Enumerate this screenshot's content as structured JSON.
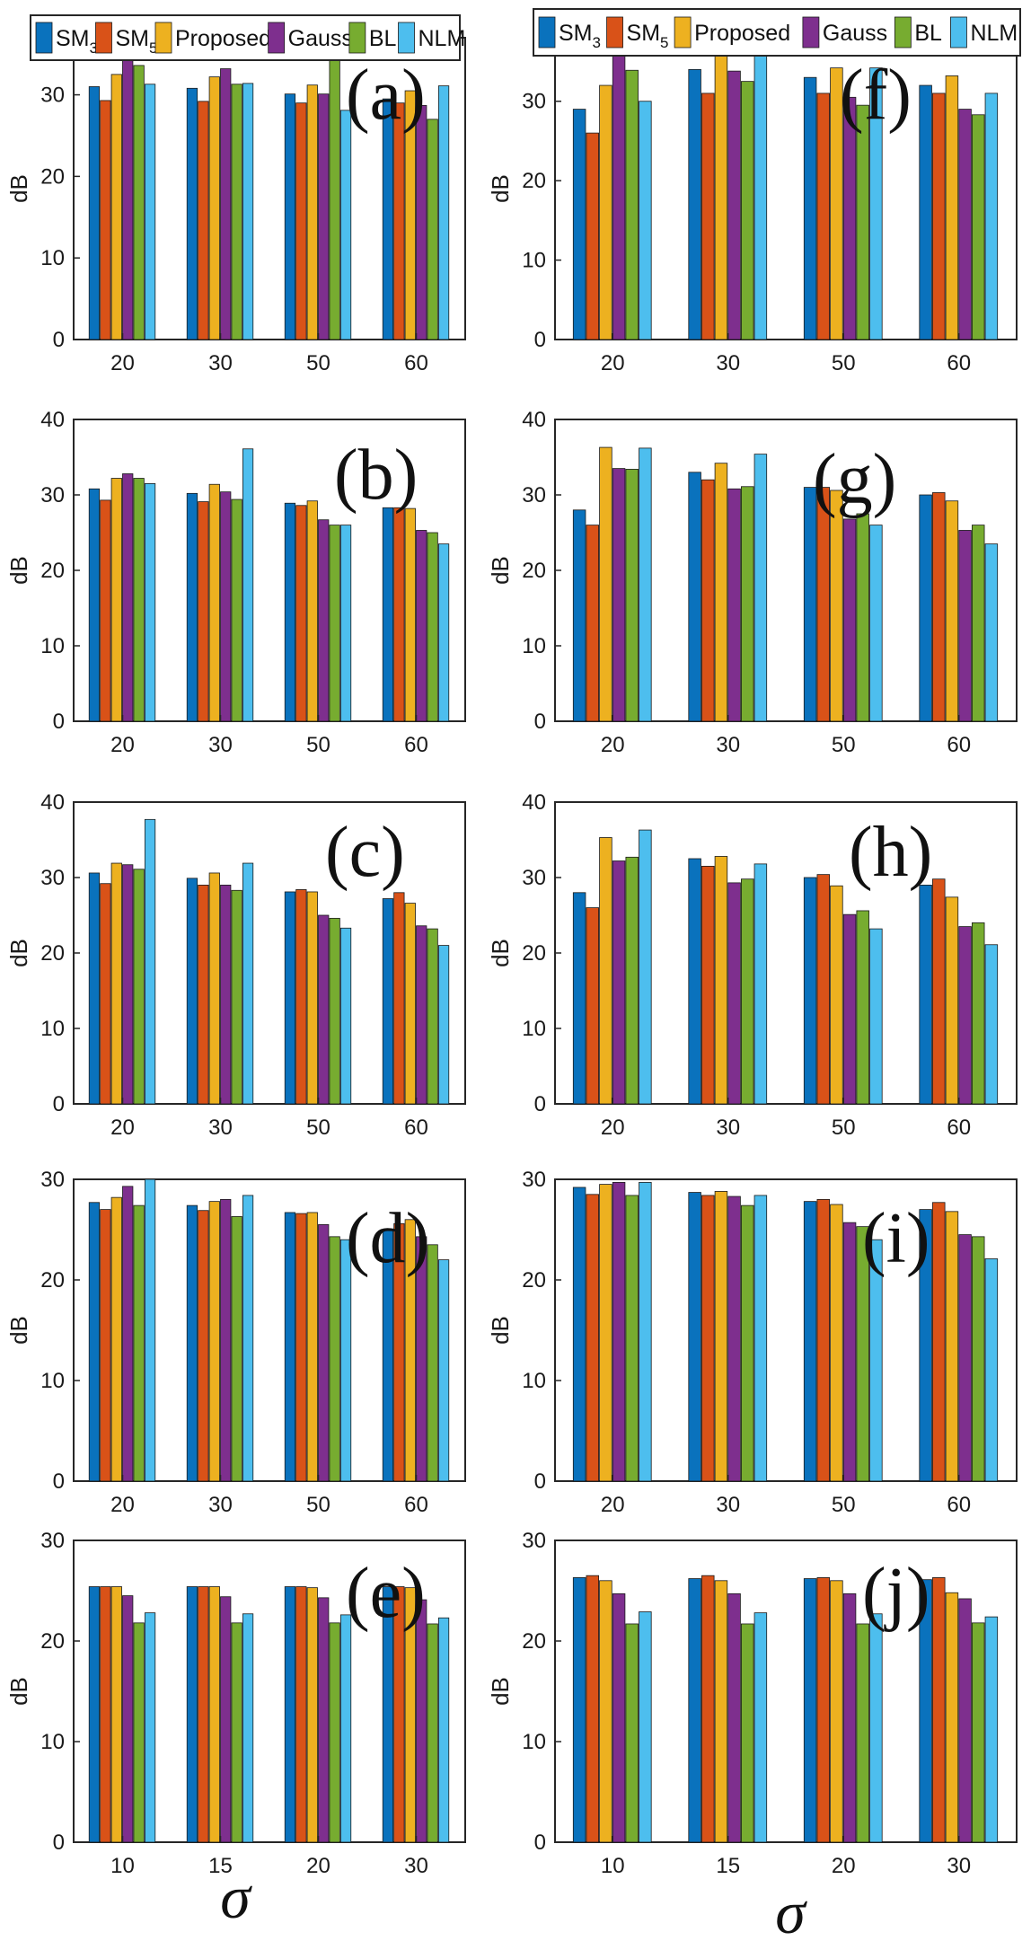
{
  "colors": {
    "SM3": "#0a72bd",
    "SM5": "#d95218",
    "Proposed": "#edb120",
    "Gauss": "#7e2f8e",
    "BL": "#77ac30",
    "NLM": "#4dbeee"
  },
  "legend_left": [
    {
      "key": "SM3",
      "label": "SM",
      "sub": "3"
    },
    {
      "key": "SM5",
      "label": "SM",
      "sub": "5"
    },
    {
      "key": "Proposed",
      "label": "Proposed",
      "sub": ""
    },
    {
      "key": "Gauss",
      "label": "Gauss",
      "sub": ""
    },
    {
      "key": "BL",
      "label": "BL",
      "sub": ""
    },
    {
      "key": "NLM",
      "label": "NLM",
      "sub": ""
    }
  ],
  "legend_right": [
    {
      "key": "SM3",
      "label": "SM",
      "sub": "3"
    },
    {
      "key": "SM5",
      "label": "SM",
      "sub": "5"
    },
    {
      "key": "Proposed",
      "label": "Proposed",
      "sub": ""
    },
    {
      "key": "Gauss",
      "label": "Gauss",
      "sub": ""
    },
    {
      "key": "BL",
      "label": "BL",
      "sub": ""
    },
    {
      "key": "NLM",
      "label": "NLM",
      "sub": ""
    }
  ],
  "xlabel_left": "σ",
  "xlabel_right": "σ",
  "chart_data": [
    {
      "panel": "(a)",
      "type": "bar",
      "ylabel": "dB",
      "categories": [
        "20",
        "30",
        "50",
        "60"
      ],
      "ylim": [
        0,
        37
      ],
      "yticks": [
        0,
        10,
        20,
        30
      ],
      "series": [
        {
          "name": "SM3",
          "values": [
            31,
            30.8,
            30.1,
            29.5
          ]
        },
        {
          "name": "SM5",
          "values": [
            29.3,
            29.2,
            29,
            29
          ]
        },
        {
          "name": "Proposed",
          "values": [
            32.5,
            32.2,
            31.2,
            30.5
          ]
        },
        {
          "name": "Gauss",
          "values": [
            35,
            33.2,
            30.1,
            28.7
          ]
        },
        {
          "name": "BL",
          "values": [
            33.6,
            31.3,
            34.6,
            27
          ]
        },
        {
          "name": "NLM",
          "values": [
            31.3,
            31.4,
            28.1,
            31.1
          ]
        }
      ]
    },
    {
      "panel": "(f)",
      "type": "bar",
      "ylabel": "dB",
      "categories": [
        "20",
        "30",
        "50",
        "60"
      ],
      "ylim": [
        0,
        38
      ],
      "yticks": [
        0,
        10,
        20,
        30
      ],
      "series": [
        {
          "name": "SM3",
          "values": [
            29,
            34,
            33,
            32
          ]
        },
        {
          "name": "SM5",
          "values": [
            26,
            31,
            31,
            31
          ]
        },
        {
          "name": "Proposed",
          "values": [
            32,
            36.5,
            34.2,
            33.2
          ]
        },
        {
          "name": "Gauss",
          "values": [
            36,
            33.8,
            30.5,
            29
          ]
        },
        {
          "name": "BL",
          "values": [
            33.9,
            32.5,
            29.5,
            28.3
          ]
        },
        {
          "name": "NLM",
          "values": [
            30,
            36,
            34.2,
            31
          ]
        }
      ]
    },
    {
      "panel": "(b)",
      "type": "bar",
      "ylabel": "dB",
      "categories": [
        "20",
        "30",
        "50",
        "60"
      ],
      "ylim": [
        0,
        40
      ],
      "yticks": [
        0,
        10,
        20,
        30,
        40
      ],
      "series": [
        {
          "name": "SM3",
          "values": [
            30.8,
            30.2,
            28.9,
            28.3
          ]
        },
        {
          "name": "SM5",
          "values": [
            29.3,
            29.1,
            28.6,
            28.3
          ]
        },
        {
          "name": "Proposed",
          "values": [
            32.2,
            31.4,
            29.2,
            28.2
          ]
        },
        {
          "name": "Gauss",
          "values": [
            32.8,
            30.4,
            26.7,
            25.3
          ]
        },
        {
          "name": "BL",
          "values": [
            32.2,
            29.4,
            26,
            25
          ]
        },
        {
          "name": "NLM",
          "values": [
            31.5,
            36.1,
            26,
            23.5
          ]
        }
      ]
    },
    {
      "panel": "(g)",
      "type": "bar",
      "ylabel": "dB",
      "categories": [
        "20",
        "30",
        "50",
        "60"
      ],
      "ylim": [
        0,
        40
      ],
      "yticks": [
        0,
        10,
        20,
        30,
        40
      ],
      "series": [
        {
          "name": "SM3",
          "values": [
            28,
            33,
            31,
            30
          ]
        },
        {
          "name": "SM5",
          "values": [
            26,
            32,
            31,
            30.3
          ]
        },
        {
          "name": "Proposed",
          "values": [
            36.3,
            34.2,
            30.6,
            29.2
          ]
        },
        {
          "name": "Gauss",
          "values": [
            33.5,
            30.8,
            26.8,
            25.3
          ]
        },
        {
          "name": "BL",
          "values": [
            33.4,
            31.1,
            27.5,
            26
          ]
        },
        {
          "name": "NLM",
          "values": [
            36.2,
            35.4,
            26,
            23.5
          ]
        }
      ]
    },
    {
      "panel": "(c)",
      "type": "bar",
      "ylabel": "dB",
      "categories": [
        "20",
        "30",
        "50",
        "60"
      ],
      "ylim": [
        0,
        40
      ],
      "yticks": [
        0,
        10,
        20,
        30,
        40
      ],
      "series": [
        {
          "name": "SM3",
          "values": [
            30.6,
            29.9,
            28.1,
            27.2
          ]
        },
        {
          "name": "SM5",
          "values": [
            29.2,
            29,
            28.4,
            28
          ]
        },
        {
          "name": "Proposed",
          "values": [
            31.9,
            30.6,
            28.1,
            26.6
          ]
        },
        {
          "name": "Gauss",
          "values": [
            31.7,
            29,
            25,
            23.6
          ]
        },
        {
          "name": "BL",
          "values": [
            31.1,
            28.3,
            24.6,
            23.2
          ]
        },
        {
          "name": "NLM",
          "values": [
            37.7,
            31.9,
            23.3,
            21
          ]
        }
      ]
    },
    {
      "panel": "(h)",
      "type": "bar",
      "ylabel": "dB",
      "categories": [
        "20",
        "30",
        "50",
        "60"
      ],
      "ylim": [
        0,
        40
      ],
      "yticks": [
        0,
        10,
        20,
        30,
        40
      ],
      "series": [
        {
          "name": "SM3",
          "values": [
            28,
            32.5,
            30,
            29
          ]
        },
        {
          "name": "SM5",
          "values": [
            26,
            31.5,
            30.4,
            29.8
          ]
        },
        {
          "name": "Proposed",
          "values": [
            35.3,
            32.8,
            28.9,
            27.4
          ]
        },
        {
          "name": "Gauss",
          "values": [
            32.2,
            29.3,
            25.1,
            23.5
          ]
        },
        {
          "name": "BL",
          "values": [
            32.7,
            29.8,
            25.6,
            24
          ]
        },
        {
          "name": "NLM",
          "values": [
            36.3,
            31.8,
            23.2,
            21.1
          ]
        }
      ]
    },
    {
      "panel": "(d)",
      "type": "bar",
      "ylabel": "dB",
      "categories": [
        "20",
        "30",
        "50",
        "60"
      ],
      "ylim": [
        0,
        30
      ],
      "yticks": [
        0,
        10,
        20,
        30
      ],
      "series": [
        {
          "name": "SM3",
          "values": [
            27.7,
            27.4,
            26.7,
            25
          ]
        },
        {
          "name": "SM5",
          "values": [
            27,
            26.9,
            26.6,
            25.6
          ]
        },
        {
          "name": "Proposed",
          "values": [
            28.2,
            27.8,
            26.7,
            26
          ]
        },
        {
          "name": "Gauss",
          "values": [
            29.3,
            28,
            25.5,
            24.3
          ]
        },
        {
          "name": "BL",
          "values": [
            27.4,
            26.3,
            24.3,
            23.5
          ]
        },
        {
          "name": "NLM",
          "values": [
            30,
            28.4,
            24,
            22
          ]
        }
      ]
    },
    {
      "panel": "(i)",
      "type": "bar",
      "ylabel": "dB",
      "categories": [
        "20",
        "30",
        "50",
        "60"
      ],
      "ylim": [
        0,
        30
      ],
      "yticks": [
        0,
        10,
        20,
        30
      ],
      "series": [
        {
          "name": "SM3",
          "values": [
            29.2,
            28.7,
            27.8,
            27
          ]
        },
        {
          "name": "SM5",
          "values": [
            28.5,
            28.4,
            28,
            27.7
          ]
        },
        {
          "name": "Proposed",
          "values": [
            29.5,
            28.8,
            27.5,
            26.8
          ]
        },
        {
          "name": "Gauss",
          "values": [
            29.7,
            28.3,
            25.7,
            24.5
          ]
        },
        {
          "name": "BL",
          "values": [
            28.4,
            27.4,
            25.3,
            24.3
          ]
        },
        {
          "name": "NLM",
          "values": [
            29.7,
            28.4,
            24,
            22.1
          ]
        }
      ]
    },
    {
      "panel": "(e)",
      "type": "bar",
      "ylabel": "dB",
      "categories": [
        "10",
        "15",
        "20",
        "30"
      ],
      "ylim": [
        0,
        30
      ],
      "yticks": [
        0,
        10,
        20,
        30
      ],
      "series": [
        {
          "name": "SM3",
          "values": [
            25.4,
            25.4,
            25.4,
            25.4
          ]
        },
        {
          "name": "SM5",
          "values": [
            25.4,
            25.4,
            25.4,
            25.4
          ]
        },
        {
          "name": "Proposed",
          "values": [
            25.4,
            25.4,
            25.3,
            25.3
          ]
        },
        {
          "name": "Gauss",
          "values": [
            24.5,
            24.4,
            24.3,
            24.1
          ]
        },
        {
          "name": "BL",
          "values": [
            21.8,
            21.8,
            21.8,
            21.7
          ]
        },
        {
          "name": "NLM",
          "values": [
            22.8,
            22.7,
            22.6,
            22.3
          ]
        }
      ]
    },
    {
      "panel": "(j)",
      "type": "bar",
      "ylabel": "dB",
      "categories": [
        "10",
        "15",
        "20",
        "30"
      ],
      "ylim": [
        0,
        30
      ],
      "yticks": [
        0,
        10,
        20,
        30
      ],
      "series": [
        {
          "name": "SM3",
          "values": [
            26.3,
            26.2,
            26.2,
            26.1
          ]
        },
        {
          "name": "SM5",
          "values": [
            26.5,
            26.5,
            26.3,
            26.3
          ]
        },
        {
          "name": "Proposed",
          "values": [
            26,
            26,
            26,
            24.8
          ]
        },
        {
          "name": "Gauss",
          "values": [
            24.7,
            24.7,
            24.7,
            24.2
          ]
        },
        {
          "name": "BL",
          "values": [
            21.7,
            21.7,
            21.7,
            21.8
          ]
        },
        {
          "name": "NLM",
          "values": [
            22.9,
            22.8,
            22.7,
            22.4
          ]
        }
      ]
    }
  ]
}
